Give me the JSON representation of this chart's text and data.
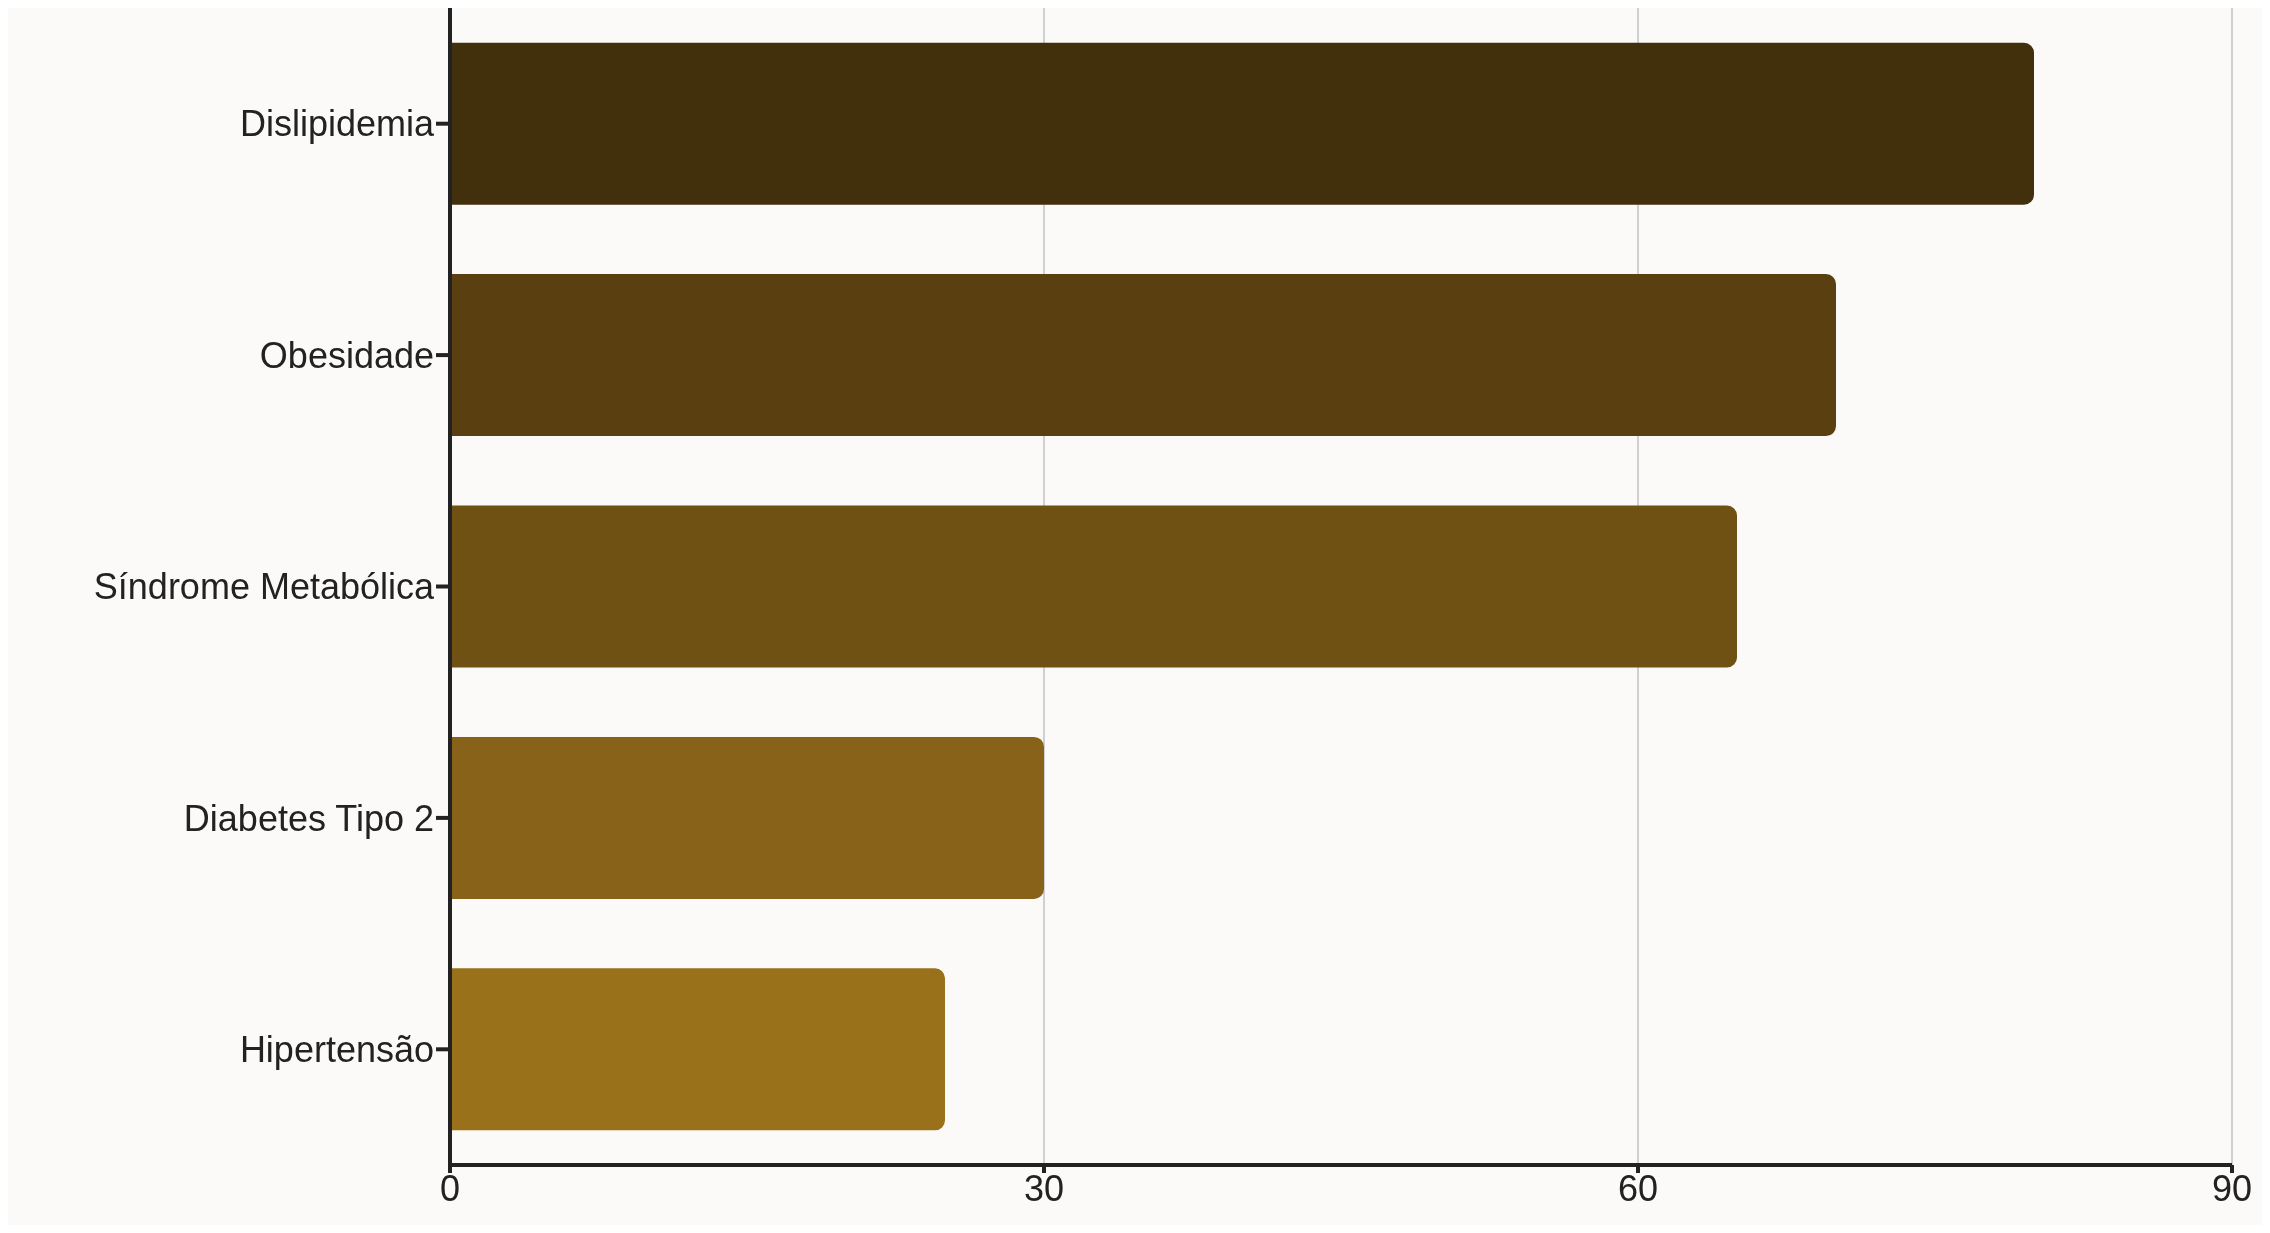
{
  "chart_data": {
    "type": "bar",
    "orientation": "horizontal",
    "categories": [
      "Dislipidemia",
      "Obesidade",
      "Síndrome Metabólica",
      "Diabetes Tipo 2",
      "Hipertensão"
    ],
    "values": [
      80,
      70,
      65,
      30,
      25
    ],
    "colors": [
      "#42300c",
      "#5a4010",
      "#705114",
      "#876218",
      "#9a711b"
    ],
    "xlim": [
      0,
      90
    ],
    "xticks": [
      0,
      30,
      60,
      90
    ],
    "grid": "x",
    "legend": false
  }
}
